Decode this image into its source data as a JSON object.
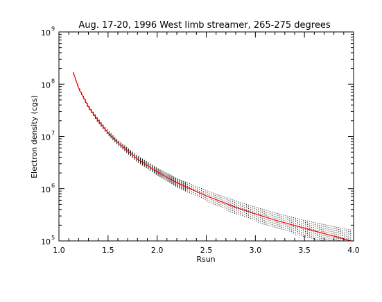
{
  "chart_data": {
    "type": "scatter",
    "title": "Aug. 17-20, 1996 West limb streamer, 265-275 degrees",
    "xlabel": "Rsun",
    "ylabel": "Electron density (cgs)",
    "xlim": [
      1.0,
      4.0
    ],
    "ylim": [
      100000,
      1000000000
    ],
    "y_scale": "log",
    "grid": false,
    "x_ticks": [
      "1.0",
      "1.5",
      "2.0",
      "2.5",
      "3.0",
      "3.5",
      "4.0"
    ],
    "y_ticks": [
      {
        "base": "10",
        "exp": "5"
      },
      {
        "base": "10",
        "exp": "6"
      },
      {
        "base": "10",
        "exp": "7"
      },
      {
        "base": "10",
        "exp": "8"
      },
      {
        "base": "10",
        "exp": "9"
      }
    ],
    "series": [
      {
        "style": "error bars (black)",
        "color": "#000000",
        "x": [
          1.15,
          1.2,
          1.3,
          1.4,
          1.5,
          1.6,
          1.8,
          2.0,
          2.2,
          2.5,
          2.8,
          3.0,
          3.2,
          3.5,
          3.8,
          4.0
        ],
        "y_high": [
          170000000,
          90000000,
          40000000,
          22000000,
          13000000,
          8600000,
          4300000,
          2500000,
          1600000,
          930000,
          590000,
          450000,
          350000,
          250000,
          190000,
          160000
        ],
        "y_low": [
          150000000,
          80000000,
          34000000,
          18000000,
          10500000,
          6800000,
          3200000,
          1800000,
          1070000,
          570000,
          320000,
          235000,
          175000,
          118000,
          84000,
          70000
        ]
      },
      {
        "style": "fit line (red)",
        "color": "#ff0000",
        "x": [
          1.15,
          1.2,
          1.3,
          1.4,
          1.5,
          1.6,
          1.8,
          2.0,
          2.2,
          2.5,
          2.8,
          3.0,
          3.2,
          3.5,
          3.8,
          4.0
        ],
        "y": [
          160000000,
          85000000,
          37000000,
          20000000,
          11700000,
          7600000,
          3700000,
          2100000,
          1300000,
          730000,
          440000,
          330000,
          250000,
          175000,
          123000,
          97000
        ]
      }
    ]
  }
}
